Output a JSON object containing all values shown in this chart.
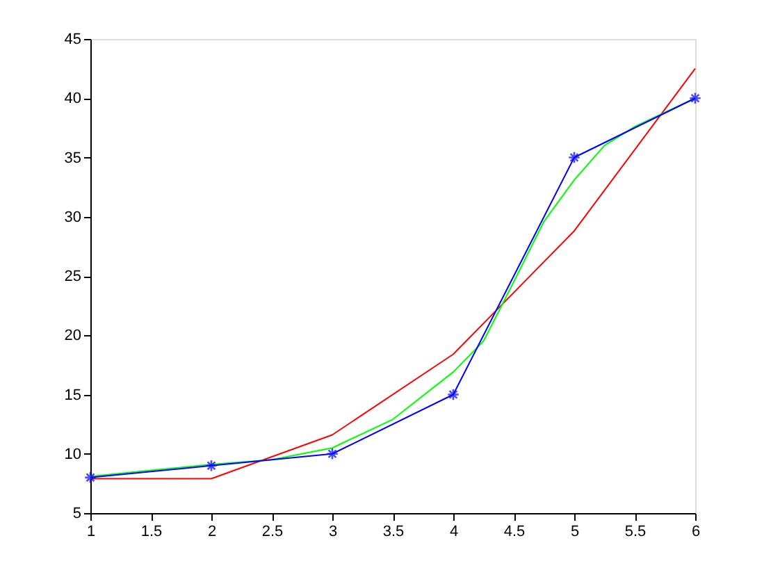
{
  "chart_data": {
    "type": "line",
    "xlim": [
      1,
      6
    ],
    "ylim": [
      5,
      45
    ],
    "xticks": [
      1,
      1.5,
      2,
      2.5,
      3,
      3.5,
      4,
      4.5,
      5,
      5.5,
      6
    ],
    "yticks": [
      5,
      10,
      15,
      20,
      25,
      30,
      35,
      40,
      45
    ],
    "grid": false,
    "legend": false,
    "series": [
      {
        "color": "#ff0000",
        "x": [
          1,
          2,
          3,
          4,
          5,
          6
        ],
        "values": [
          7.9,
          7.9,
          11.6,
          18.4,
          28.8,
          42.5
        ],
        "marker": "none"
      },
      {
        "color": "#00ff00",
        "x": [
          1,
          1.5,
          2,
          2.5,
          3,
          3.5,
          4,
          4.25,
          4.5,
          4.75,
          5,
          5.25,
          5.5,
          5.75,
          6
        ],
        "values": [
          8.1,
          8.6,
          9.1,
          9.5,
          10.5,
          12.9,
          16.9,
          19.5,
          24.5,
          29.6,
          33.1,
          36.0,
          37.6,
          38.8,
          40
        ],
        "marker": "none"
      },
      {
        "color": "#0000ff",
        "x": [
          1,
          2,
          3,
          4,
          5,
          6
        ],
        "values": [
          8,
          9,
          10,
          15,
          35,
          40
        ],
        "marker": "cross"
      }
    ]
  }
}
